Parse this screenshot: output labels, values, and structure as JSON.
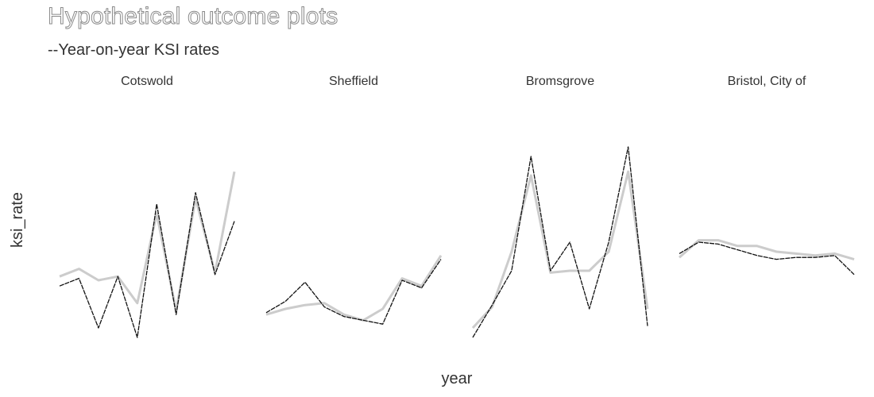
{
  "chart_data": {
    "type": "line",
    "title": "Hypothetical outcome plots",
    "subtitle": "--Year-on-year KSI rates",
    "xlabel": "year",
    "ylabel": "ksi_rate",
    "grid": false,
    "ylim": [
      0,
      100
    ],
    "colors": {
      "observed": "#111111",
      "hypothetical": "#cccccc"
    },
    "facets": [
      {
        "name": "Cotswold",
        "observed": [
          27,
          31,
          5,
          32,
          0,
          70,
          12,
          76,
          33,
          61
        ],
        "hypothetical": [
          32,
          36,
          30,
          32,
          18,
          65,
          14,
          73,
          34,
          87
        ]
      },
      {
        "name": "Sheffield",
        "observed": [
          13,
          19,
          29,
          16,
          11,
          9,
          7,
          30,
          26,
          41
        ],
        "hypothetical": [
          12,
          15,
          17,
          18,
          12,
          9,
          15,
          31,
          27,
          43
        ]
      },
      {
        "name": "Bromsgrove",
        "observed": [
          0,
          17,
          35,
          95,
          35,
          50,
          15,
          50,
          100,
          6
        ],
        "hypothetical": [
          5,
          16,
          45,
          85,
          34,
          35,
          35,
          45,
          87,
          15
        ]
      },
      {
        "name": "Bristol, City of",
        "observed": [
          44,
          50,
          49,
          46,
          43,
          41,
          42,
          42,
          43,
          33
        ],
        "hypothetical": [
          42,
          51,
          51,
          48,
          48,
          45,
          44,
          43,
          44,
          41
        ]
      }
    ]
  }
}
